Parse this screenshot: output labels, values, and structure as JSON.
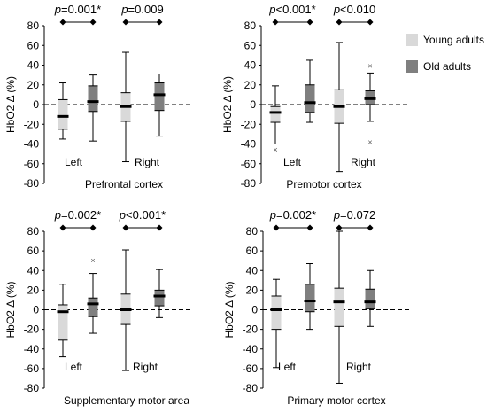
{
  "legend": [
    {
      "label": "Young adults",
      "color": "#d9d9d9"
    },
    {
      "label": "Old adults",
      "color": "#7f7f7f"
    }
  ],
  "chart_data": [
    {
      "type": "boxplot",
      "title": "Prefrontal cortex",
      "ylabel": "HbO2 Δ (%)",
      "ylim": [
        -80,
        80
      ],
      "yticks": [
        "80",
        "60",
        "40",
        "20",
        "0",
        "-20",
        "-40",
        "-60",
        "-80"
      ],
      "groups": [
        {
          "label": "Left",
          "p_prefix": "p",
          "p_value": "=0.001*",
          "boxes": [
            {
              "series": "Young adults",
              "min": -35,
              "q1": -25,
              "median": -12,
              "q3": 5,
              "max": 22,
              "outliers": []
            },
            {
              "series": "Old adults",
              "min": -37,
              "q1": -7,
              "median": 3,
              "q3": 19,
              "max": 30,
              "outliers": []
            }
          ]
        },
        {
          "label": "Right",
          "p_prefix": "p",
          "p_value": "=0.009",
          "boxes": [
            {
              "series": "Young adults",
              "min": -58,
              "q1": -17,
              "median": -2,
              "q3": 12,
              "max": 53,
              "outliers": []
            },
            {
              "series": "Old adults",
              "min": -32,
              "q1": -6,
              "median": 10,
              "q3": 22,
              "max": 31,
              "outliers": []
            }
          ]
        }
      ]
    },
    {
      "type": "boxplot",
      "title": "Premotor cortex",
      "ylabel": "HbO2 Δ (%)",
      "ylim": [
        -80,
        80
      ],
      "yticks": [
        "80",
        "60",
        "40",
        "20",
        "0",
        "-20",
        "-40",
        "-60",
        "-80"
      ],
      "groups": [
        {
          "label": "Left",
          "p_prefix": "p",
          "p_value": "<0.001*",
          "boxes": [
            {
              "series": "Young adults",
              "min": -40,
              "q1": -18,
              "median": -8,
              "q3": -2,
              "max": 19,
              "outliers": [
                -46
              ]
            },
            {
              "series": "Old adults",
              "min": -18,
              "q1": -8,
              "median": 2,
              "q3": 20,
              "max": 45,
              "outliers": []
            }
          ]
        },
        {
          "label": "Right",
          "p_prefix": "p",
          "p_value": "<0.010",
          "boxes": [
            {
              "series": "Young adults",
              "min": -68,
              "q1": -19,
              "median": -2,
              "q3": 15,
              "max": 63,
              "outliers": []
            },
            {
              "series": "Old adults",
              "min": -17,
              "q1": 0,
              "median": 6,
              "q3": 14,
              "max": 32,
              "outliers": [
                39,
                -38
              ]
            }
          ]
        }
      ]
    },
    {
      "type": "boxplot",
      "title": "Supplementary motor area",
      "ylabel": "HbO2 Δ (%)",
      "ylim": [
        -80,
        80
      ],
      "yticks": [
        "80",
        "60",
        "40",
        "20",
        "0",
        "-20",
        "-40",
        "-60",
        "-80"
      ],
      "groups": [
        {
          "label": "Left",
          "p_prefix": "p",
          "p_value": "=0.002*",
          "boxes": [
            {
              "series": "Young adults",
              "min": -48,
              "q1": -31,
              "median": -2,
              "q3": 5,
              "max": 26,
              "outliers": []
            },
            {
              "series": "Old adults",
              "min": -24,
              "q1": -7,
              "median": 6,
              "q3": 12,
              "max": 37,
              "outliers": [
                50
              ]
            }
          ]
        },
        {
          "label": "Right",
          "p_prefix": "p",
          "p_value": "<0.001*",
          "boxes": [
            {
              "series": "Young adults",
              "min": -62,
              "q1": -15,
              "median": 0,
              "q3": 16,
              "max": 61,
              "outliers": []
            },
            {
              "series": "Old adults",
              "min": -8,
              "q1": 4,
              "median": 14,
              "q3": 20,
              "max": 41,
              "outliers": []
            }
          ]
        }
      ]
    },
    {
      "type": "boxplot",
      "title": "Primary motor cortex",
      "ylabel": "HbO2 Δ (%)",
      "ylim": [
        -80,
        80
      ],
      "yticks": [
        "80",
        "60",
        "40",
        "20",
        "0",
        "-20",
        "-40",
        "-60",
        "-80"
      ],
      "groups": [
        {
          "label": "Left",
          "p_prefix": "p",
          "p_value": "=0.002*",
          "boxes": [
            {
              "series": "Young adults",
              "min": -59,
              "q1": -20,
              "median": 0,
              "q3": 14,
              "max": 31,
              "outliers": []
            },
            {
              "series": "Old adults",
              "min": -20,
              "q1": -2,
              "median": 9,
              "q3": 26,
              "max": 47,
              "outliers": []
            }
          ]
        },
        {
          "label": "Right",
          "p_prefix": "p",
          "p_value": "=0.072",
          "boxes": [
            {
              "series": "Young adults",
              "min": -75,
              "q1": -17,
              "median": 8,
              "q3": 22,
              "max": 80,
              "outliers": []
            },
            {
              "series": "Old adults",
              "min": -17,
              "q1": 1,
              "median": 8,
              "q3": 21,
              "max": 40,
              "outliers": []
            }
          ]
        }
      ]
    }
  ]
}
